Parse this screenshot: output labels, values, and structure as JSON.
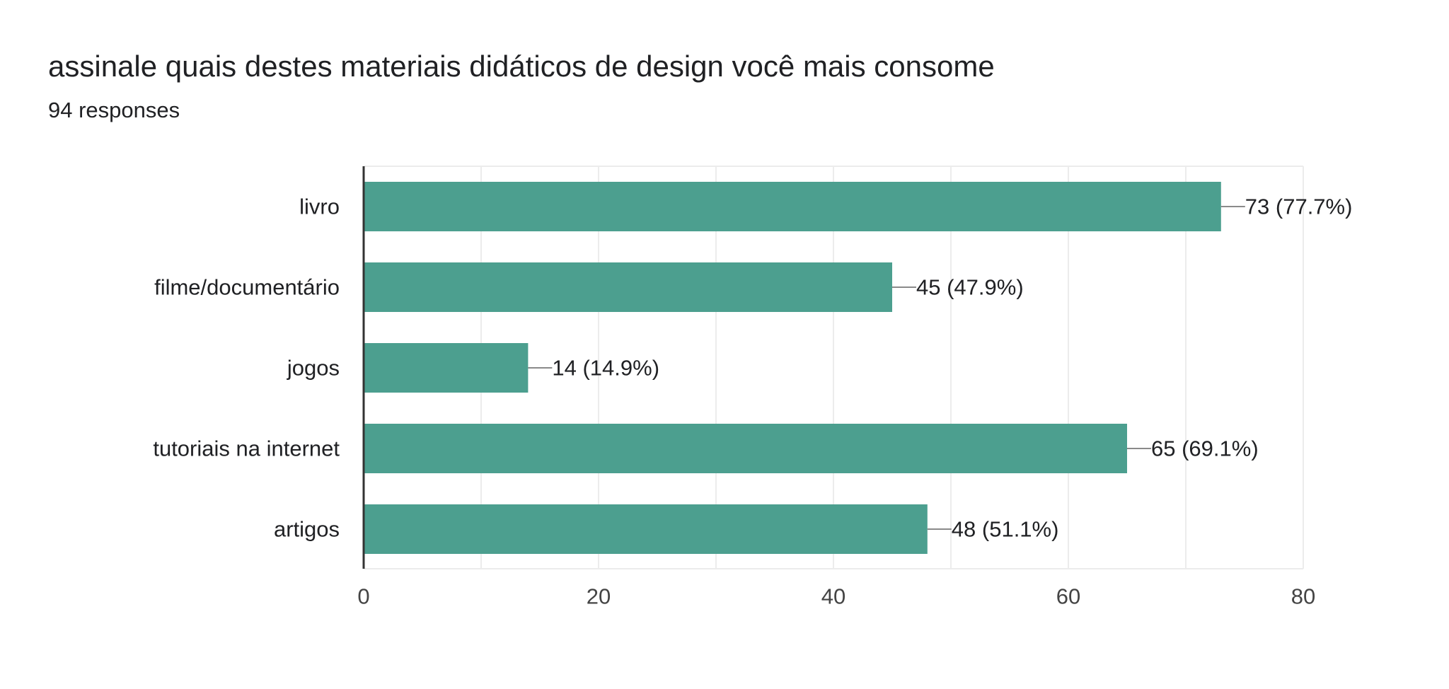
{
  "title": "assinale quais destes materiais didáticos de design você mais consome",
  "subtitle": "94 responses",
  "colors": {
    "bar": "#4c9f8f",
    "grid": "#ececec",
    "axis": "#333333",
    "leader": "#8a8a8a"
  },
  "chart_data": {
    "type": "bar",
    "orientation": "horizontal",
    "title": "assinale quais destes materiais didáticos de design você mais consome",
    "subtitle": "94 responses",
    "categories": [
      "livro",
      "filme/documentário",
      "jogos",
      "tutoriais na internet",
      "artigos"
    ],
    "values": [
      73,
      45,
      14,
      65,
      48
    ],
    "labels": [
      "73 (77.7%)",
      "45 (47.9%)",
      "14 (14.9%)",
      "65 (69.1%)",
      "48 (51.1%)"
    ],
    "xlim": [
      0,
      80
    ],
    "ticks": [
      0,
      20,
      40,
      60,
      80
    ],
    "tick_labels": [
      "0",
      "20",
      "40",
      "60",
      "80"
    ],
    "minor_grid_step": 10,
    "grid": true,
    "xlabel": "",
    "ylabel": ""
  }
}
